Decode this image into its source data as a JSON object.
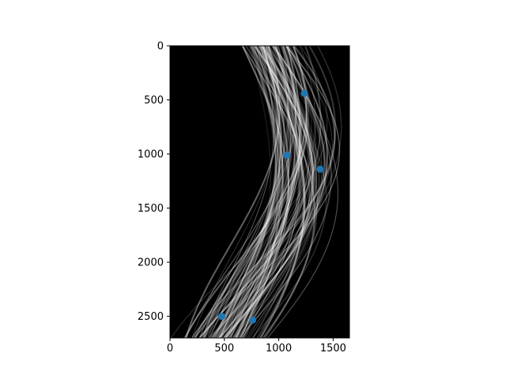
{
  "chart_data": {
    "type": "scatter",
    "title": "",
    "xlabel": "",
    "ylabel": "",
    "xlim": [
      0,
      1650
    ],
    "ylim": [
      2700,
      0
    ],
    "y_inverted": true,
    "background": "image",
    "image_description_visible": false,
    "x_ticks": [
      "0",
      "500",
      "1000",
      "1500"
    ],
    "y_ticks": [
      "0",
      "500",
      "1000",
      "1500",
      "2000",
      "2500"
    ],
    "x_tick_values": [
      0,
      500,
      1000,
      1500
    ],
    "y_tick_values": [
      0,
      500,
      1000,
      1500,
      2000,
      2500
    ],
    "series": [
      {
        "color": "#1f77b4",
        "points": [
          {
            "x": 1235,
            "y": 440
          },
          {
            "x": 1075,
            "y": 1010
          },
          {
            "x": 1380,
            "y": 1140
          },
          {
            "x": 475,
            "y": 2500
          },
          {
            "x": 760,
            "y": 2535
          }
        ]
      }
    ]
  }
}
